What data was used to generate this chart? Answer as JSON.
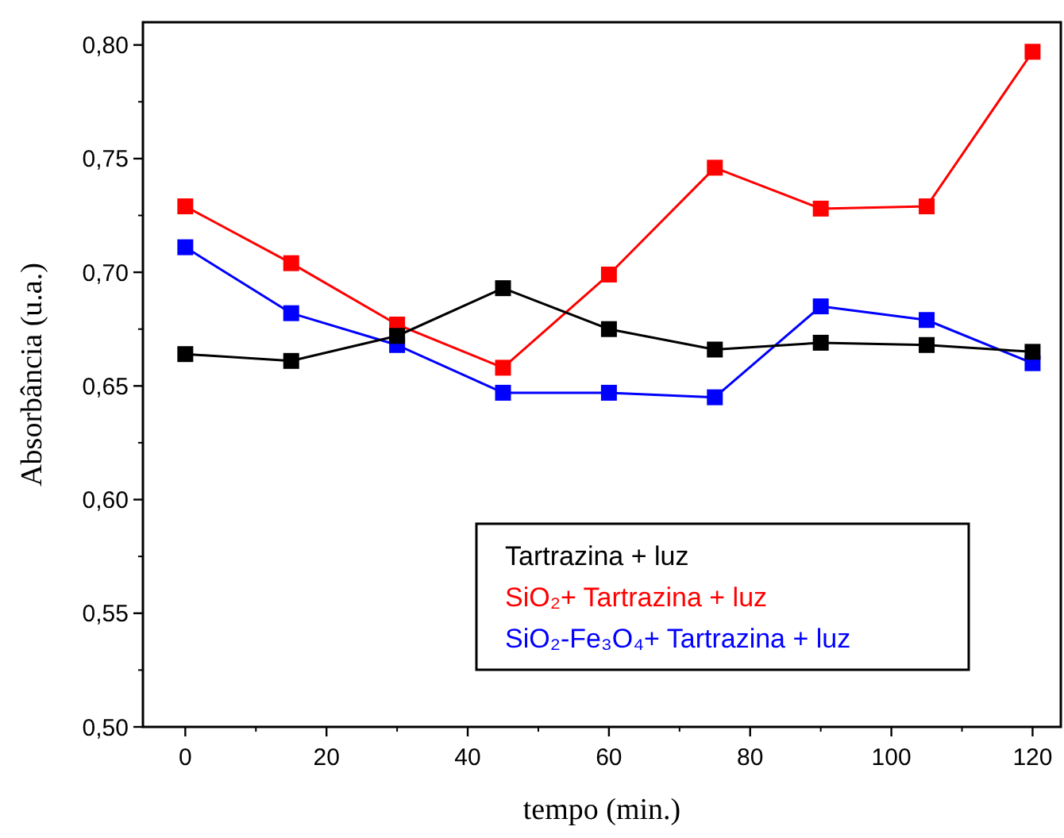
{
  "chart_data": {
    "type": "line",
    "xlabel": "tempo (min.)",
    "ylabel": "Absorbância (u.a.)",
    "x": [
      0,
      15,
      30,
      45,
      60,
      75,
      90,
      105,
      120
    ],
    "xlim": [
      -6,
      124
    ],
    "xticks": [
      0,
      20,
      40,
      60,
      80,
      100,
      120
    ],
    "ylim": [
      0.5,
      0.81
    ],
    "yticks": [
      {
        "value": 0.5,
        "label": "0,50"
      },
      {
        "value": 0.55,
        "label": "0,55"
      },
      {
        "value": 0.6,
        "label": "0,60"
      },
      {
        "value": 0.65,
        "label": "0,65"
      },
      {
        "value": 0.7,
        "label": "0,70"
      },
      {
        "value": 0.75,
        "label": "0,75"
      },
      {
        "value": 0.8,
        "label": "0,80"
      }
    ],
    "marker": "square",
    "line_style": "solid",
    "grid": false,
    "legend": "bottom right",
    "series": [
      {
        "name": "Tartrazina + luz",
        "color": "#000000",
        "values": [
          0.664,
          0.661,
          0.672,
          0.693,
          0.675,
          0.666,
          0.669,
          0.668,
          0.665
        ]
      },
      {
        "name": "SiO₂+ Tartrazina + luz",
        "color": "#ff0000",
        "values": [
          0.729,
          0.704,
          0.677,
          0.658,
          0.699,
          0.746,
          0.728,
          0.729,
          0.797
        ]
      },
      {
        "name": "SiO₂-Fe₃O₄+ Tartrazina + luz",
        "color": "#0000ff",
        "values": [
          0.711,
          0.682,
          0.668,
          0.647,
          0.647,
          0.645,
          0.685,
          0.679,
          0.66
        ]
      }
    ]
  }
}
